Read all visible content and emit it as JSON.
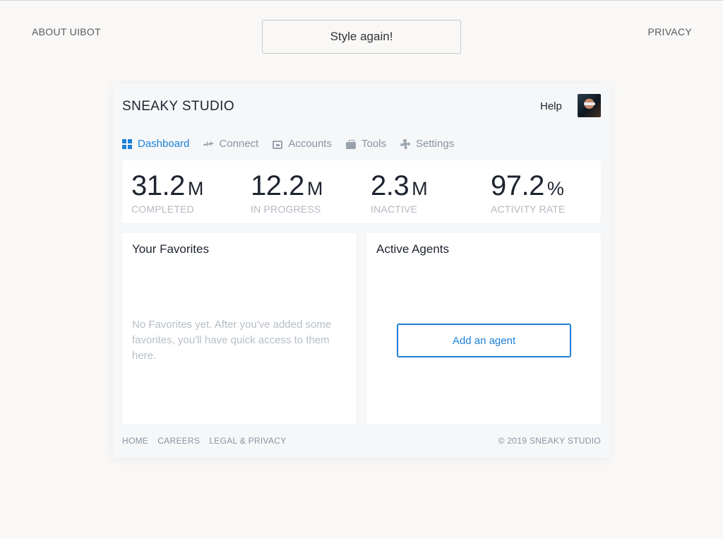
{
  "topbar": {
    "about_label": "ABOUT UIBOT",
    "style_button_label": "Style again!",
    "privacy_label": "PRIVACY"
  },
  "app": {
    "brand": "SNEAKY STUDIO",
    "help_label": "Help",
    "nav": [
      {
        "label": "Dashboard",
        "icon": "dashboard-icon",
        "active": true
      },
      {
        "label": "Connect",
        "icon": "connect-icon",
        "active": false
      },
      {
        "label": "Accounts",
        "icon": "wallet-icon",
        "active": false
      },
      {
        "label": "Tools",
        "icon": "briefcase-icon",
        "active": false
      },
      {
        "label": "Settings",
        "icon": "gear-icon",
        "active": false
      }
    ],
    "stats": [
      {
        "value": "31.2",
        "unit": "M",
        "label": "COMPLETED"
      },
      {
        "value": "12.2",
        "unit": "M",
        "label": "IN PROGRESS"
      },
      {
        "value": "2.3",
        "unit": "M",
        "label": "INACTIVE"
      },
      {
        "value": "97.2",
        "unit": "%",
        "label": "ACTIVITY RATE"
      }
    ],
    "favorites": {
      "title": "Your Favorites",
      "empty_text": "No Favorites yet. After you've added some favorites, you'll have quick access to them here."
    },
    "agents": {
      "title": "Active Agents",
      "add_button_label": "Add an agent"
    },
    "footer": {
      "links": [
        "HOME",
        "CAREERS",
        "LEGAL & PRIVACY"
      ],
      "copyright": "© 2019 SNEAKY STUDIO"
    }
  },
  "colors": {
    "accent": "#1d7fd6",
    "text": "#1e2430",
    "muted": "#8a94a0"
  }
}
